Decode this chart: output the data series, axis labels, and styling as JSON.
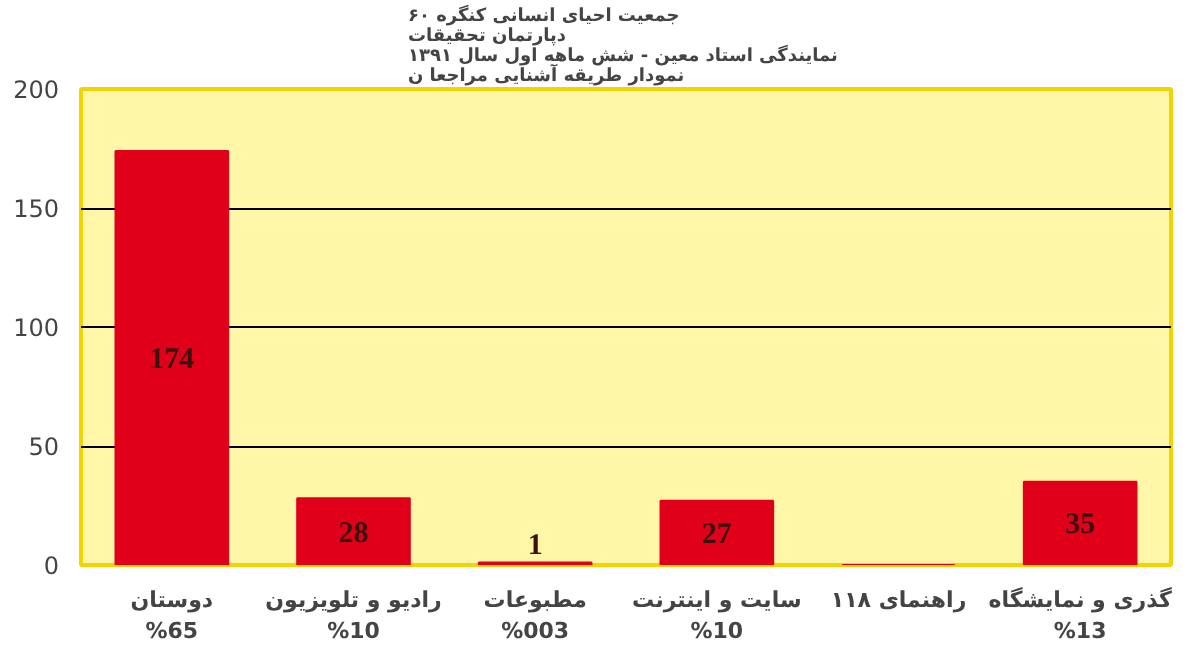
{
  "chart_data": {
    "type": "bar",
    "title": "جمعیت احیای انسانی کنگره ۶۰\nدپارتمان تحقیقات\nنمایندگی استاد معین  - شش ماهه اول سال ۱۳۹۱\nنمودار طریقه آشنایی مراجعا ن",
    "categories": [
      "دوستان\n%65",
      "رادیو و تلویزیون\n%10",
      "مطبوعات\n%003",
      "سایت و اینترنت\n%10",
      "راهنمای ۱۱۸",
      "گذری و نمایشگاه\n%13"
    ],
    "values": [
      174,
      28,
      1,
      27,
      0,
      35
    ],
    "value_labels": [
      "174",
      "28",
      "1",
      "27",
      null,
      "35"
    ],
    "color": "#e0001a",
    "ylim": [
      0,
      200
    ],
    "yticks": [
      0,
      50,
      100,
      150,
      200
    ],
    "grid": "y"
  }
}
